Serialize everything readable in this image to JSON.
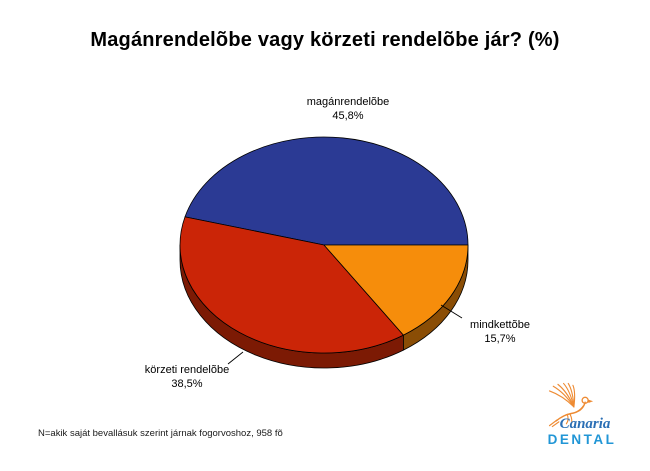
{
  "title": "Magánrendelõbe vagy körzeti rendelõbe jár? (%)",
  "footnote": "N=akik saját bevallásuk szerint járnak fogorvoshoz, 958 fõ",
  "logo": {
    "name": "Canaria",
    "sub": "DENTAL"
  },
  "colors": {
    "text": "#000000",
    "footnote-text": "#1a1a1a",
    "bird": "#EE8B33",
    "logo-script": "#2B6FB5",
    "logo-caps": "#2196D6"
  },
  "chart_data": {
    "type": "pie",
    "style": "3d",
    "title": "Magánrendelõbe vagy körzeti rendelõbe jár? (%)",
    "categories": [
      "magánrendelõbe",
      "körzeti rendelõbe",
      "mindkettõbe"
    ],
    "values": [
      45.8,
      38.5,
      15.7
    ],
    "units": "%",
    "start_angle_deg": 0,
    "direction": "counterclockwise",
    "legend_position": "none",
    "label_style": "callouts",
    "sample_note": "N=958 fõ",
    "slices": [
      {
        "label": "magánrendelõbe",
        "value": 45.8,
        "display": "45,8%",
        "color": "#2B3A94",
        "side_color": "#1A2158"
      },
      {
        "label": "körzeti rendelõbe",
        "value": 38.5,
        "display": "38,5%",
        "color": "#CB2507",
        "side_color": "#7C1A04"
      },
      {
        "label": "mindkettõbe",
        "value": 15.7,
        "display": "15,7%",
        "color": "#F68D0B",
        "side_color": "#8A4D05"
      }
    ]
  }
}
